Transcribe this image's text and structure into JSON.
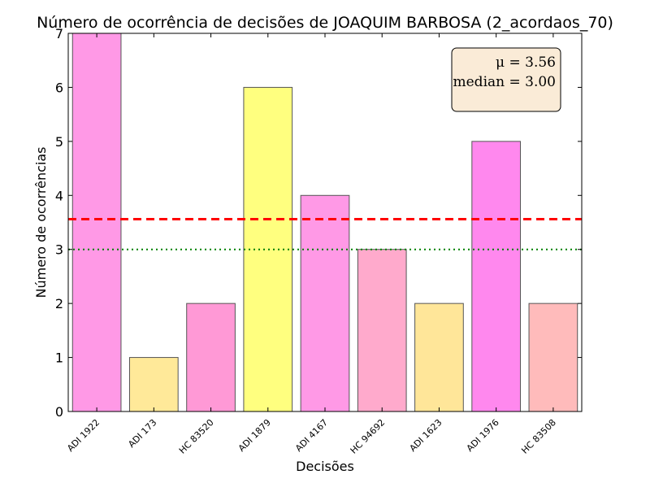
{
  "chart_data": {
    "type": "bar",
    "title": "Número de ocorrência de decisões de JOAQUIM BARBOSA (2_acordaos_70)",
    "xlabel": "Decisões",
    "ylabel": "Número de ocorrências",
    "categories": [
      "ADI 1922",
      "ADI 173",
      "HC 83520",
      "ADI 1879",
      "ADI 4167",
      "HC 94692",
      "ADI 1623",
      "ADI 1976",
      "HC 83508"
    ],
    "values": [
      7,
      1,
      2,
      6,
      4,
      3,
      2,
      5,
      2
    ],
    "bar_colors": [
      "#ff99e6",
      "#ffe999",
      "#ff99d6",
      "#ffff7f",
      "#ff99e6",
      "#ffaacc",
      "#ffe699",
      "#ff88ee",
      "#ffbbbb"
    ],
    "ylim": [
      0,
      7
    ],
    "yticks": [
      "0",
      "1",
      "2",
      "3",
      "4",
      "5",
      "6",
      "7"
    ],
    "mean": 3.56,
    "median": 3.0,
    "mean_line_color": "#ff0000",
    "median_line_color": "#008000",
    "stats_box": {
      "mean_text": "μ = 3.56",
      "median_text": "median = 3.00",
      "background": "#faebd7",
      "placement": "top-right"
    },
    "grid": false
  }
}
